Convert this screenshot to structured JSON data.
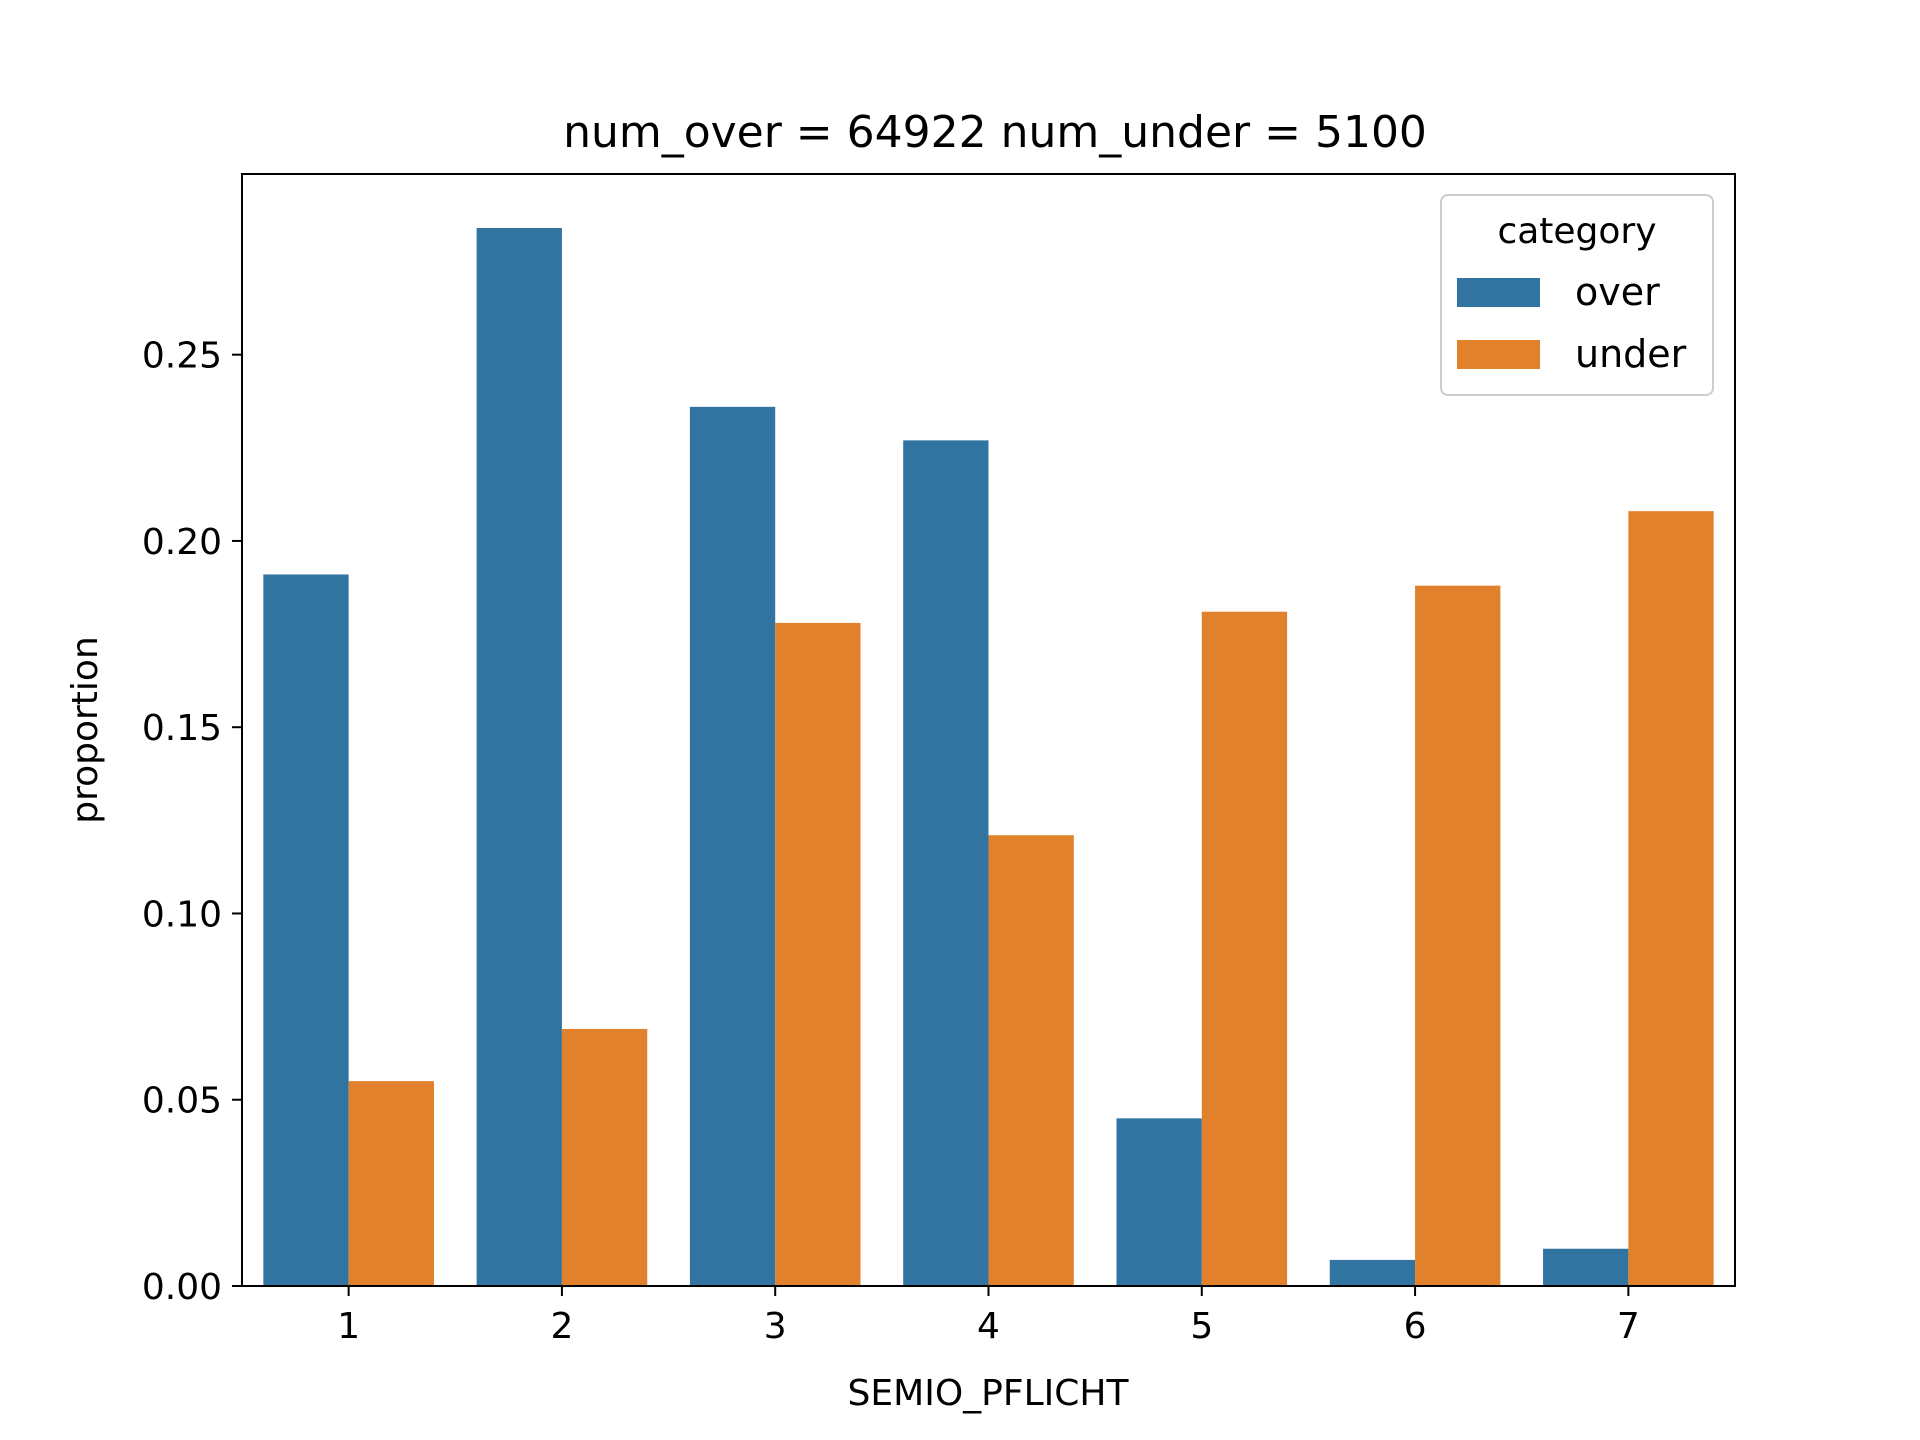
{
  "chart_data": {
    "type": "bar",
    "title": "num_over = 64922  num_under = 5100",
    "xlabel": "SEMIO_PFLICHT",
    "ylabel": "proportion",
    "categories": [
      "1",
      "2",
      "3",
      "4",
      "5",
      "6",
      "7"
    ],
    "series": [
      {
        "name": "over",
        "color": "#3274a1",
        "values": [
          0.191,
          0.284,
          0.236,
          0.227,
          0.045,
          0.007,
          0.01
        ]
      },
      {
        "name": "under",
        "color": "#e1812c",
        "values": [
          0.055,
          0.069,
          0.178,
          0.121,
          0.181,
          0.188,
          0.208
        ]
      }
    ],
    "ylim": [
      0,
      0.2985
    ],
    "yticks": [
      "0.00",
      "0.05",
      "0.10",
      "0.15",
      "0.20",
      "0.25"
    ],
    "grid": false,
    "legend": {
      "title": "category",
      "placement": "top-right"
    }
  }
}
